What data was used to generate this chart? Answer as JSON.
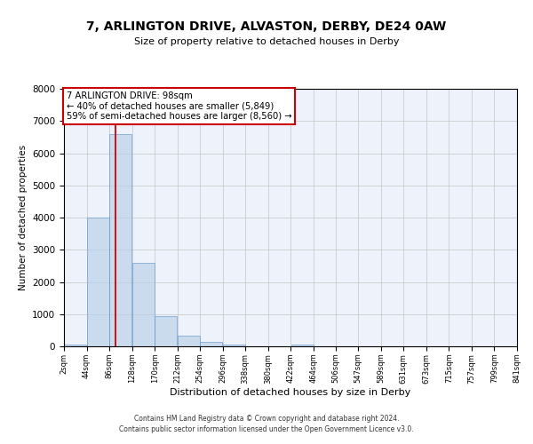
{
  "title1": "7, ARLINGTON DRIVE, ALVASTON, DERBY, DE24 0AW",
  "title2": "Size of property relative to detached houses in Derby",
  "xlabel": "Distribution of detached houses by size in Derby",
  "ylabel": "Number of detached properties",
  "bin_edges": [
    2,
    44,
    86,
    128,
    170,
    212,
    254,
    296,
    338,
    380,
    422,
    464,
    506,
    547,
    589,
    631,
    673,
    715,
    757,
    799,
    841
  ],
  "bar_heights": [
    50,
    4000,
    6600,
    2600,
    950,
    330,
    130,
    50,
    0,
    0,
    50,
    0,
    0,
    0,
    0,
    0,
    0,
    0,
    0,
    0
  ],
  "bar_color": "#b8d0e8",
  "bar_edge_color": "#6699cc",
  "bar_alpha": 0.65,
  "vline_x": 98,
  "vline_color": "#cc0000",
  "ylim": [
    0,
    8000
  ],
  "yticks": [
    0,
    1000,
    2000,
    3000,
    4000,
    5000,
    6000,
    7000,
    8000
  ],
  "annotation_box_text": "7 ARLINGTON DRIVE: 98sqm\n← 40% of detached houses are smaller (5,849)\n59% of semi-detached houses are larger (8,560) →",
  "annotation_box_color": "#cc0000",
  "annotation_box_facecolor": "white",
  "grid_color": "#cccccc",
  "bg_color": "#eef2fb",
  "footer1": "Contains HM Land Registry data © Crown copyright and database right 2024.",
  "footer2": "Contains public sector information licensed under the Open Government Licence v3.0.",
  "tick_labels": [
    "2sqm",
    "44sqm",
    "86sqm",
    "128sqm",
    "170sqm",
    "212sqm",
    "254sqm",
    "296sqm",
    "338sqm",
    "380sqm",
    "422sqm",
    "464sqm",
    "506sqm",
    "547sqm",
    "589sqm",
    "631sqm",
    "673sqm",
    "715sqm",
    "757sqm",
    "799sqm",
    "841sqm"
  ]
}
